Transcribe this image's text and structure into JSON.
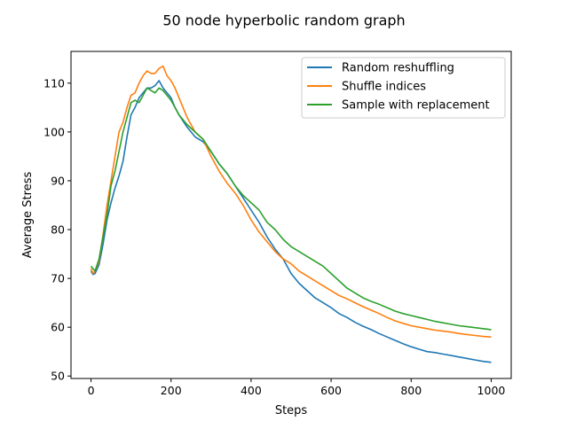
{
  "chart_data": {
    "type": "line",
    "title": "50 node hyperbolic random graph",
    "xlabel": "Steps",
    "ylabel": "Average Stress",
    "xlim": [
      -50,
      1050
    ],
    "ylim": [
      49.5,
      116.5
    ],
    "xticks": [
      0,
      200,
      400,
      600,
      800,
      1000
    ],
    "yticks": [
      50,
      60,
      70,
      80,
      90,
      100,
      110
    ],
    "grid": false,
    "legend_position": "top-right",
    "series": [
      {
        "name": "Random reshuffling",
        "color": "#1f77b4",
        "points": [
          [
            0,
            71.5
          ],
          [
            5,
            70.8
          ],
          [
            10,
            71.0
          ],
          [
            20,
            72.8
          ],
          [
            30,
            77.0
          ],
          [
            40,
            82.0
          ],
          [
            50,
            85.5
          ],
          [
            60,
            88.5
          ],
          [
            70,
            91.0
          ],
          [
            80,
            94.0
          ],
          [
            90,
            99.0
          ],
          [
            100,
            103.5
          ],
          [
            110,
            105.0
          ],
          [
            120,
            107.0
          ],
          [
            130,
            108.0
          ],
          [
            140,
            109.0
          ],
          [
            150,
            109.0
          ],
          [
            160,
            109.5
          ],
          [
            170,
            110.5
          ],
          [
            180,
            109.0
          ],
          [
            190,
            108.0
          ],
          [
            200,
            107.0
          ],
          [
            210,
            105.0
          ],
          [
            220,
            103.5
          ],
          [
            240,
            101.0
          ],
          [
            260,
            99.0
          ],
          [
            280,
            98.0
          ],
          [
            300,
            96.0
          ],
          [
            320,
            93.5
          ],
          [
            340,
            91.5
          ],
          [
            360,
            89.0
          ],
          [
            380,
            86.5
          ],
          [
            400,
            84.0
          ],
          [
            420,
            81.5
          ],
          [
            440,
            78.5
          ],
          [
            460,
            76.0
          ],
          [
            480,
            74.0
          ],
          [
            500,
            71.0
          ],
          [
            520,
            69.0
          ],
          [
            540,
            67.5
          ],
          [
            560,
            66.0
          ],
          [
            580,
            65.0
          ],
          [
            600,
            64.0
          ],
          [
            620,
            62.8
          ],
          [
            640,
            62.0
          ],
          [
            660,
            61.0
          ],
          [
            680,
            60.2
          ],
          [
            700,
            59.5
          ],
          [
            720,
            58.7
          ],
          [
            740,
            58.0
          ],
          [
            760,
            57.3
          ],
          [
            780,
            56.6
          ],
          [
            800,
            56.0
          ],
          [
            820,
            55.5
          ],
          [
            840,
            55.0
          ],
          [
            860,
            54.8
          ],
          [
            880,
            54.5
          ],
          [
            900,
            54.2
          ],
          [
            920,
            53.9
          ],
          [
            940,
            53.6
          ],
          [
            960,
            53.3
          ],
          [
            980,
            53.0
          ],
          [
            1000,
            52.8
          ]
        ]
      },
      {
        "name": "Shuffle indices",
        "color": "#ff7f0e",
        "points": [
          [
            0,
            72.0
          ],
          [
            5,
            71.0
          ],
          [
            10,
            71.5
          ],
          [
            20,
            73.5
          ],
          [
            30,
            79.0
          ],
          [
            40,
            85.0
          ],
          [
            50,
            90.0
          ],
          [
            60,
            95.0
          ],
          [
            70,
            100.0
          ],
          [
            80,
            102.0
          ],
          [
            90,
            105.0
          ],
          [
            100,
            107.5
          ],
          [
            110,
            108.0
          ],
          [
            120,
            110.0
          ],
          [
            130,
            111.5
          ],
          [
            140,
            112.5
          ],
          [
            150,
            112.0
          ],
          [
            160,
            112.0
          ],
          [
            170,
            113.0
          ],
          [
            180,
            113.5
          ],
          [
            190,
            111.5
          ],
          [
            200,
            110.5
          ],
          [
            210,
            109.0
          ],
          [
            220,
            107.0
          ],
          [
            240,
            103.0
          ],
          [
            260,
            100.0
          ],
          [
            280,
            98.5
          ],
          [
            300,
            95.0
          ],
          [
            320,
            92.0
          ],
          [
            340,
            89.5
          ],
          [
            360,
            87.5
          ],
          [
            380,
            85.0
          ],
          [
            400,
            82.0
          ],
          [
            420,
            79.5
          ],
          [
            440,
            77.5
          ],
          [
            460,
            75.5
          ],
          [
            480,
            74.0
          ],
          [
            500,
            73.0
          ],
          [
            520,
            71.5
          ],
          [
            540,
            70.5
          ],
          [
            560,
            69.5
          ],
          [
            580,
            68.5
          ],
          [
            600,
            67.5
          ],
          [
            620,
            66.5
          ],
          [
            640,
            65.8
          ],
          [
            660,
            65.0
          ],
          [
            680,
            64.2
          ],
          [
            700,
            63.5
          ],
          [
            720,
            62.8
          ],
          [
            740,
            62.0
          ],
          [
            760,
            61.3
          ],
          [
            780,
            60.8
          ],
          [
            800,
            60.3
          ],
          [
            820,
            60.0
          ],
          [
            840,
            59.7
          ],
          [
            860,
            59.4
          ],
          [
            880,
            59.2
          ],
          [
            900,
            59.0
          ],
          [
            920,
            58.7
          ],
          [
            940,
            58.5
          ],
          [
            960,
            58.3
          ],
          [
            980,
            58.1
          ],
          [
            1000,
            58.0
          ]
        ]
      },
      {
        "name": "Sample with replacement",
        "color": "#2ca02c",
        "points": [
          [
            0,
            72.5
          ],
          [
            5,
            72.0
          ],
          [
            10,
            71.5
          ],
          [
            20,
            74.0
          ],
          [
            30,
            78.5
          ],
          [
            40,
            83.0
          ],
          [
            50,
            89.0
          ],
          [
            60,
            92.0
          ],
          [
            70,
            96.0
          ],
          [
            80,
            100.0
          ],
          [
            90,
            103.0
          ],
          [
            100,
            106.0
          ],
          [
            110,
            106.5
          ],
          [
            120,
            106.0
          ],
          [
            130,
            107.5
          ],
          [
            140,
            109.0
          ],
          [
            150,
            108.5
          ],
          [
            160,
            108.0
          ],
          [
            170,
            109.0
          ],
          [
            180,
            108.5
          ],
          [
            190,
            107.5
          ],
          [
            200,
            106.5
          ],
          [
            210,
            105.0
          ],
          [
            220,
            103.5
          ],
          [
            240,
            101.5
          ],
          [
            260,
            100.0
          ],
          [
            280,
            98.5
          ],
          [
            300,
            96.0
          ],
          [
            320,
            93.5
          ],
          [
            340,
            91.5
          ],
          [
            360,
            89.0
          ],
          [
            380,
            87.0
          ],
          [
            400,
            85.5
          ],
          [
            420,
            84.0
          ],
          [
            440,
            81.5
          ],
          [
            460,
            80.0
          ],
          [
            480,
            78.0
          ],
          [
            500,
            76.5
          ],
          [
            520,
            75.5
          ],
          [
            540,
            74.5
          ],
          [
            560,
            73.5
          ],
          [
            580,
            72.5
          ],
          [
            600,
            71.0
          ],
          [
            620,
            69.5
          ],
          [
            640,
            68.0
          ],
          [
            660,
            67.0
          ],
          [
            680,
            66.0
          ],
          [
            700,
            65.3
          ],
          [
            720,
            64.7
          ],
          [
            740,
            64.0
          ],
          [
            760,
            63.3
          ],
          [
            780,
            62.8
          ],
          [
            800,
            62.4
          ],
          [
            820,
            62.0
          ],
          [
            840,
            61.6
          ],
          [
            860,
            61.2
          ],
          [
            880,
            60.9
          ],
          [
            900,
            60.6
          ],
          [
            920,
            60.3
          ],
          [
            940,
            60.1
          ],
          [
            960,
            59.9
          ],
          [
            980,
            59.7
          ],
          [
            1000,
            59.5
          ]
        ]
      }
    ]
  }
}
